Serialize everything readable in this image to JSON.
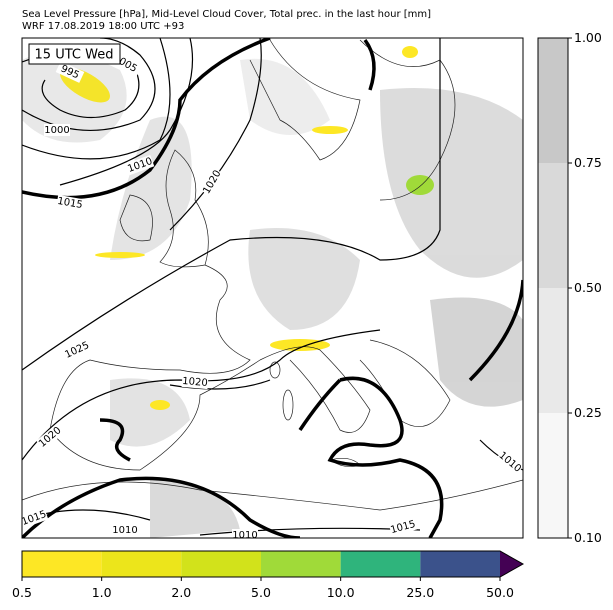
{
  "header": {
    "title": "Sea Level Pressure [hPa], Mid-Level Cloud Cover, Total prec. in the last hour [mm]",
    "subtitle": "WRF 17.08.2019 18:00 UTC +93"
  },
  "map": {
    "time_label": "15 UTC Wed",
    "isobar_labels": [
      "995",
      "005",
      "1000",
      "1010",
      "1020",
      "1015",
      "1025",
      "1020",
      "1020",
      "1010",
      "1015",
      "1015",
      "1010",
      "1010"
    ]
  },
  "colorbar_cloud": {
    "ticks": [
      "0.10",
      "0.25",
      "0.50",
      "0.75",
      "1.00"
    ]
  },
  "colorbar_precip": {
    "ticks": [
      "0.5",
      "1.0",
      "2.0",
      "5.0",
      "10.0",
      "25.0",
      "50.0"
    ]
  }
}
